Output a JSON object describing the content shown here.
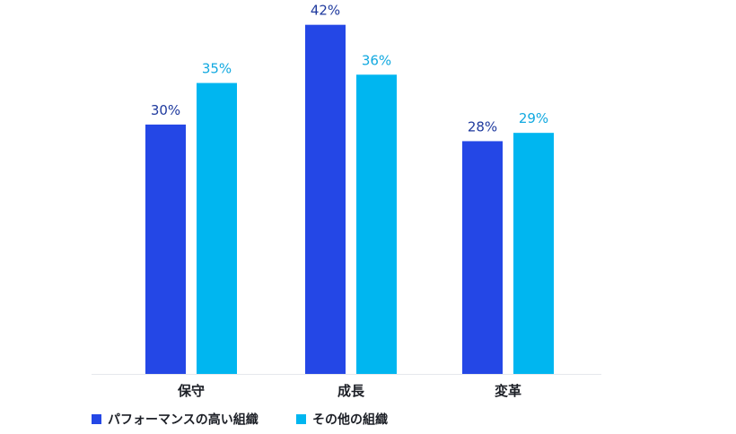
{
  "chart_data": {
    "type": "bar",
    "title": "",
    "xlabel": "",
    "ylabel": "",
    "ylim": [
      0,
      45
    ],
    "grid": false,
    "legend_position": "bottom-left",
    "categories": [
      "保守",
      "成長",
      "変革"
    ],
    "series": [
      {
        "name": "パフォーマンスの高い組織",
        "values": [
          30,
          42,
          28
        ],
        "labels": [
          "30%",
          "42%",
          "28%"
        ],
        "color": "#2447E6",
        "label_color": "#1F3A9E"
      },
      {
        "name": "その他の組織",
        "values": [
          35,
          36,
          29
        ],
        "labels": [
          "35%",
          "36%",
          "29%"
        ],
        "color": "#00B6F0",
        "label_color": "#12A9E0"
      }
    ],
    "colors": {
      "axis_line": "#E6E8EC",
      "category_text": "#1C1F26",
      "legend_text": "#1C1F26"
    }
  }
}
